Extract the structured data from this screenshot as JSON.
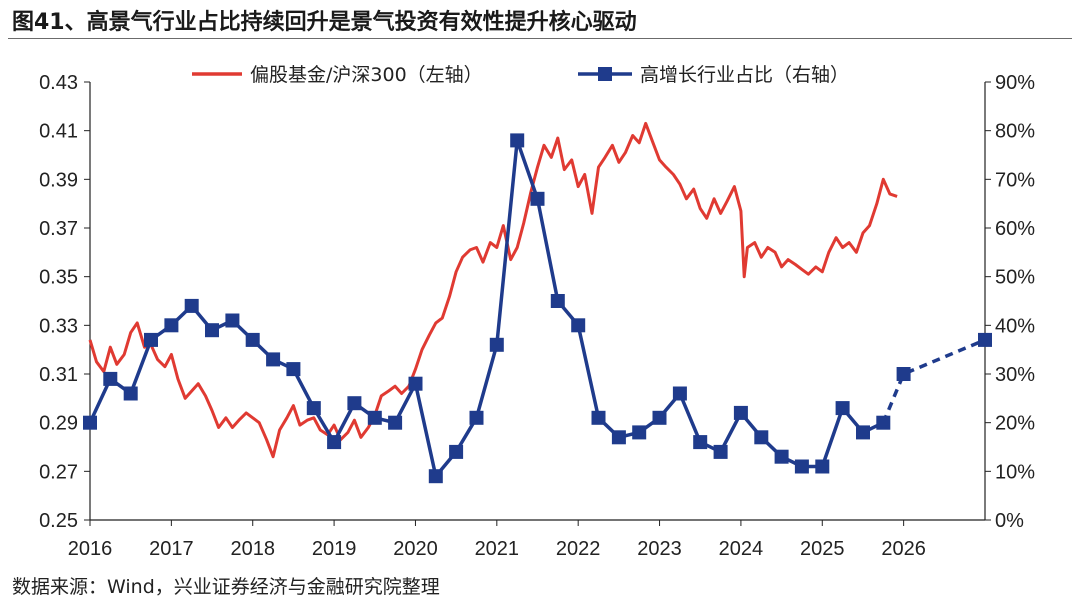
{
  "title": "图41、高景气行业占比持续回升是景气投资有效性提升核心驱动",
  "source": "数据来源：Wind，兴业证券经济与金融研究院整理",
  "colors": {
    "red_series": "#e03a32",
    "blue_series": "#1f3b8c"
  },
  "chart_data": {
    "type": "line",
    "title": "图41、高景气行业占比持续回升是景气投资有效性提升核心驱动",
    "x_tick_labels": [
      "2016",
      "2017",
      "2018",
      "2019",
      "2020",
      "2021",
      "2022",
      "2023",
      "2024",
      "2025",
      "2026"
    ],
    "xlim": [
      2016.0,
      2027.0
    ],
    "y_left": {
      "ticks": [
        "0.25",
        "0.27",
        "0.29",
        "0.31",
        "0.33",
        "0.35",
        "0.37",
        "0.39",
        "0.41",
        "0.43"
      ],
      "range": [
        0.25,
        0.43
      ]
    },
    "y_right": {
      "ticks": [
        "0%",
        "10%",
        "20%",
        "30%",
        "40%",
        "50%",
        "60%",
        "70%",
        "80%",
        "90%"
      ],
      "range": [
        0,
        90
      ]
    },
    "legend_position": "top",
    "grid": false,
    "series": [
      {
        "name": "偏股基金/沪深300（左轴）",
        "axis": "left",
        "color": "#e03a32",
        "x": [
          2016.0,
          2016.08,
          2016.17,
          2016.25,
          2016.33,
          2016.42,
          2016.5,
          2016.58,
          2016.67,
          2016.75,
          2016.83,
          2016.92,
          2017.0,
          2017.08,
          2017.17,
          2017.25,
          2017.33,
          2017.42,
          2017.5,
          2017.58,
          2017.67,
          2017.75,
          2017.83,
          2017.92,
          2018.0,
          2018.08,
          2018.17,
          2018.25,
          2018.33,
          2018.42,
          2018.5,
          2018.58,
          2018.67,
          2018.75,
          2018.83,
          2018.92,
          2019.0,
          2019.08,
          2019.17,
          2019.25,
          2019.33,
          2019.42,
          2019.5,
          2019.58,
          2019.67,
          2019.75,
          2019.83,
          2019.92,
          2020.0,
          2020.08,
          2020.17,
          2020.25,
          2020.33,
          2020.42,
          2020.5,
          2020.58,
          2020.67,
          2020.75,
          2020.83,
          2020.92,
          2021.0,
          2021.08,
          2021.17,
          2021.25,
          2021.33,
          2021.42,
          2021.5,
          2021.58,
          2021.67,
          2021.75,
          2021.83,
          2021.92,
          2022.0,
          2022.08,
          2022.17,
          2022.25,
          2022.33,
          2022.42,
          2022.5,
          2022.58,
          2022.67,
          2022.75,
          2022.83,
          2022.92,
          2023.0,
          2023.08,
          2023.17,
          2023.25,
          2023.33,
          2023.42,
          2023.5,
          2023.58,
          2023.67,
          2023.75,
          2023.83,
          2023.92,
          2024.0,
          2024.04,
          2024.08,
          2024.17,
          2024.25,
          2024.33,
          2024.42,
          2024.5,
          2024.58,
          2024.67,
          2024.75,
          2024.83,
          2024.92,
          2025.0,
          2025.08,
          2025.17,
          2025.25,
          2025.33,
          2025.42,
          2025.5,
          2025.58,
          2025.67,
          2025.75,
          2025.83,
          2025.92
        ],
        "y": [
          0.324,
          0.315,
          0.311,
          0.321,
          0.314,
          0.318,
          0.327,
          0.331,
          0.321,
          0.322,
          0.316,
          0.313,
          0.318,
          0.308,
          0.3,
          0.303,
          0.306,
          0.301,
          0.295,
          0.288,
          0.292,
          0.288,
          0.291,
          0.294,
          0.292,
          0.29,
          0.283,
          0.276,
          0.287,
          0.292,
          0.297,
          0.289,
          0.291,
          0.292,
          0.287,
          0.285,
          0.289,
          0.283,
          0.286,
          0.291,
          0.284,
          0.288,
          0.293,
          0.301,
          0.303,
          0.305,
          0.302,
          0.305,
          0.312,
          0.32,
          0.326,
          0.331,
          0.333,
          0.342,
          0.352,
          0.358,
          0.361,
          0.362,
          0.356,
          0.364,
          0.362,
          0.371,
          0.357,
          0.362,
          0.372,
          0.385,
          0.395,
          0.404,
          0.399,
          0.407,
          0.394,
          0.398,
          0.387,
          0.392,
          0.376,
          0.395,
          0.399,
          0.404,
          0.397,
          0.401,
          0.408,
          0.405,
          0.413,
          0.405,
          0.398,
          0.395,
          0.392,
          0.388,
          0.382,
          0.386,
          0.378,
          0.374,
          0.382,
          0.376,
          0.381,
          0.387,
          0.377,
          0.35,
          0.362,
          0.364,
          0.358,
          0.362,
          0.36,
          0.354,
          0.357,
          0.355,
          0.353,
          0.351,
          0.354,
          0.352,
          0.36,
          0.366,
          0.362,
          0.364,
          0.36,
          0.368,
          0.371,
          0.38,
          0.39,
          0.384,
          0.383
        ]
      },
      {
        "name": "高增长行业占比（右轴）",
        "axis": "right",
        "color": "#1f3b8c",
        "x": [
          2016.0,
          2016.25,
          2016.5,
          2016.75,
          2017.0,
          2017.25,
          2017.5,
          2017.75,
          2018.0,
          2018.25,
          2018.5,
          2018.75,
          2019.0,
          2019.25,
          2019.5,
          2019.75,
          2020.0,
          2020.25,
          2020.5,
          2020.75,
          2021.0,
          2021.25,
          2021.5,
          2021.75,
          2022.0,
          2022.25,
          2022.5,
          2022.75,
          2023.0,
          2023.25,
          2023.5,
          2023.75,
          2024.0,
          2024.25,
          2024.5,
          2024.75,
          2025.0,
          2025.25,
          2025.5,
          2025.75,
          2026.0,
          2027.0
        ],
        "y": [
          20,
          29,
          26,
          37,
          40,
          44,
          39,
          41,
          37,
          33,
          31,
          23,
          16,
          24,
          21,
          20,
          28,
          9,
          14,
          21,
          36,
          78,
          66,
          45,
          40,
          21,
          17,
          18,
          21,
          26,
          16,
          14,
          22,
          17,
          13,
          11,
          11,
          23,
          18,
          20,
          30,
          37
        ],
        "dashed_from_index": 39
      }
    ]
  }
}
